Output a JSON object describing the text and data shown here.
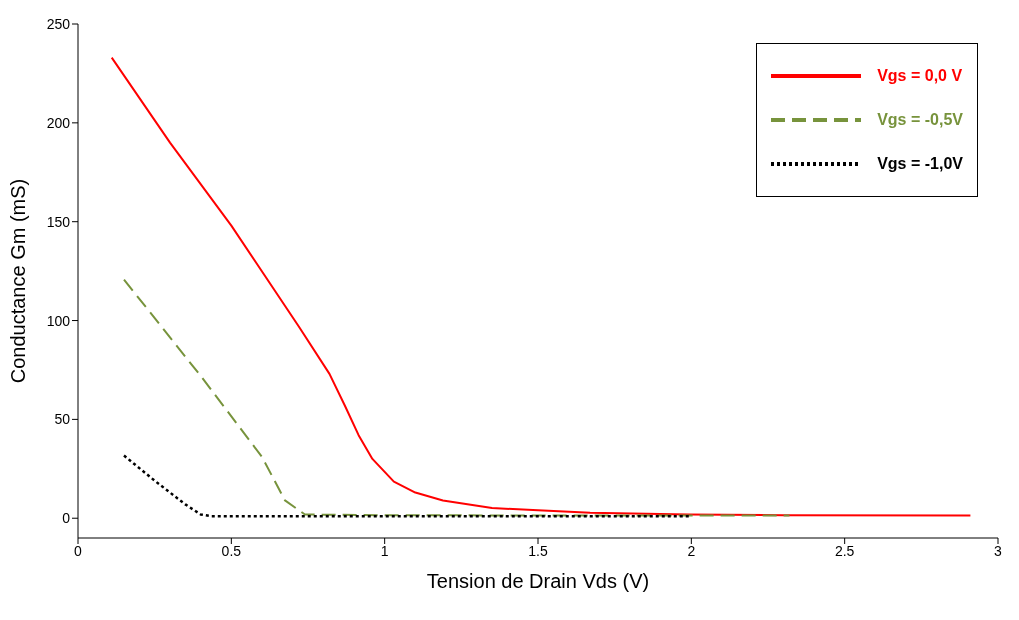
{
  "chart_data": {
    "type": "line",
    "xlabel": "Tension de Drain Vds (V)",
    "ylabel": "Conductance Gm (mS)",
    "xlim": [
      0,
      3
    ],
    "xticks": [
      0,
      0.5,
      1,
      1.5,
      2,
      2.5,
      3
    ],
    "ylim": [
      -10,
      250
    ],
    "yticks": [
      0,
      50,
      100,
      150,
      200,
      250
    ],
    "legend": "top right",
    "marker": "none",
    "series": [
      {
        "name": "Vgs = 0,0 V",
        "color": "#ff0000",
        "line_style": "solid",
        "x": [
          0.11,
          0.3,
          0.5,
          0.72,
          0.82,
          0.87,
          0.915,
          0.96,
          1.03,
          1.1,
          1.19,
          1.35,
          1.5,
          1.67,
          1.99,
          2.3,
          2.91
        ],
        "values": [
          233,
          190,
          148,
          97,
          73,
          57,
          42,
          30,
          18.5,
          13,
          9,
          5.2,
          4,
          2.8,
          1.9,
          1.5,
          1.4
        ]
      },
      {
        "name": "Vgs = -0,5V",
        "color": "#77933c",
        "line_style": "dashed",
        "x": [
          0.15,
          0.4,
          0.6,
          0.675,
          0.74,
          1,
          1.5,
          2,
          2.32
        ],
        "values": [
          120.7,
          72,
          31,
          9,
          1.9,
          1.5,
          1.4,
          1.4,
          1.4
        ]
      },
      {
        "name": "Vgs = -1,0V",
        "color": "#000000",
        "line_style": "dotted",
        "x": [
          0.15,
          0.25,
          0.35,
          0.4,
          0.435,
          1,
          1.5,
          2
        ],
        "values": [
          31.7,
          19,
          7,
          1.9,
          1,
          1,
          1,
          1
        ]
      }
    ]
  }
}
